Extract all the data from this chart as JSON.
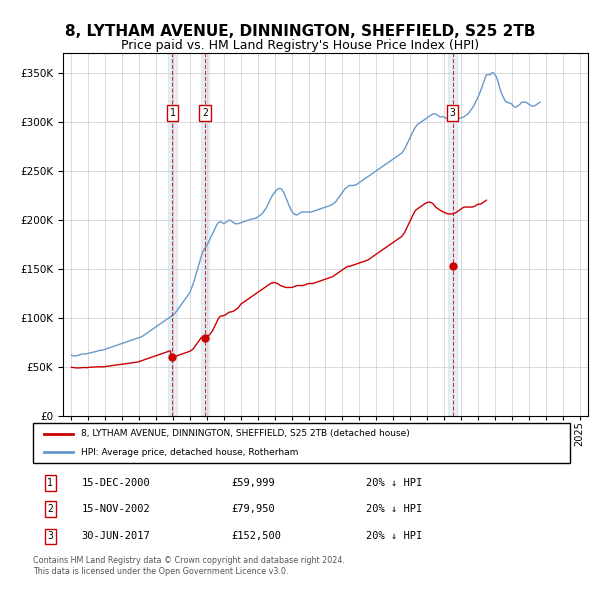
{
  "title": "8, LYTHAM AVENUE, DINNINGTON, SHEFFIELD, S25 2TB",
  "subtitle": "Price paid vs. HM Land Registry's House Price Index (HPI)",
  "title_fontsize": 11,
  "subtitle_fontsize": 9,
  "background_color": "#ffffff",
  "plot_bg_color": "#ffffff",
  "grid_color": "#cccccc",
  "ylim": [
    0,
    370000
  ],
  "yticks": [
    0,
    50000,
    100000,
    150000,
    200000,
    250000,
    300000,
    350000
  ],
  "xlim_start": 1994.5,
  "xlim_end": 2025.5,
  "xticks": [
    1995,
    1996,
    1997,
    1998,
    1999,
    2000,
    2001,
    2002,
    2003,
    2004,
    2005,
    2006,
    2007,
    2008,
    2009,
    2010,
    2011,
    2012,
    2013,
    2014,
    2015,
    2016,
    2017,
    2018,
    2019,
    2020,
    2021,
    2022,
    2023,
    2024,
    2025
  ],
  "hpi_color": "#6699cc",
  "price_color": "#cc0000",
  "sale_marker_color": "#cc0000",
  "legend_line1": "8, LYTHAM AVENUE, DINNINGTON, SHEFFIELD, S25 2TB (detached house)",
  "legend_line2": "HPI: Average price, detached house, Rotherham",
  "sales": [
    {
      "label": "1",
      "date": 2000.96,
      "price": 59999
    },
    {
      "label": "2",
      "date": 2002.88,
      "price": 79950
    },
    {
      "label": "3",
      "date": 2017.5,
      "price": 152500
    }
  ],
  "sale_table": [
    {
      "num": "1",
      "date": "15-DEC-2000",
      "price": "£59,999",
      "note": "20% ↓ HPI"
    },
    {
      "num": "2",
      "date": "15-NOV-2002",
      "price": "£79,950",
      "note": "20% ↓ HPI"
    },
    {
      "num": "3",
      "date": "30-JUN-2017",
      "price": "£152,500",
      "note": "20% ↓ HPI"
    }
  ],
  "footer": "Contains HM Land Registry data © Crown copyright and database right 2024.\nThis data is licensed under the Open Government Licence v3.0.",
  "hpi_data_y": [
    62000,
    61500,
    61000,
    61200,
    61500,
    62000,
    62500,
    63000,
    63200,
    63000,
    63200,
    63500,
    64000,
    64200,
    64500,
    65000,
    65200,
    65500,
    66000,
    66500,
    66800,
    67000,
    67200,
    67500,
    68000,
    68500,
    69000,
    69500,
    70000,
    70500,
    71000,
    71500,
    72000,
    72500,
    73000,
    73500,
    74000,
    74500,
    75000,
    75500,
    76000,
    76500,
    77000,
    77500,
    78000,
    78500,
    79000,
    79500,
    80000,
    80500,
    81000,
    82000,
    83000,
    84000,
    85000,
    86000,
    87000,
    88000,
    89000,
    90000,
    91000,
    92000,
    93000,
    94000,
    95000,
    96000,
    97000,
    98000,
    99000,
    100000,
    101000,
    102000,
    103000,
    104000,
    106000,
    108000,
    110000,
    112000,
    114000,
    116000,
    118000,
    120000,
    122000,
    124000,
    126000,
    130000,
    134000,
    138000,
    143000,
    148000,
    153000,
    158000,
    163000,
    167000,
    170000,
    172000,
    174000,
    177000,
    180000,
    183000,
    186000,
    189000,
    192000,
    195000,
    197000,
    198000,
    198000,
    197000,
    196000,
    197000,
    198000,
    199000,
    200000,
    199000,
    198000,
    197000,
    196000,
    196000,
    196000,
    196500,
    197000,
    197500,
    198000,
    198500,
    199000,
    199500,
    200000,
    200500,
    201000,
    201000,
    201500,
    202000,
    203000,
    204000,
    205000,
    206000,
    208000,
    210000,
    212000,
    215000,
    218000,
    221000,
    224000,
    226000,
    228000,
    230000,
    231000,
    232000,
    232000,
    231000,
    229000,
    226000,
    222000,
    219000,
    215000,
    212000,
    209000,
    207000,
    206000,
    205000,
    205000,
    206000,
    207000,
    208000,
    208000,
    208000,
    208000,
    208000,
    208000,
    208000,
    208000,
    208500,
    209000,
    209500,
    210000,
    210500,
    211000,
    211500,
    212000,
    212500,
    213000,
    213500,
    214000,
    214500,
    215000,
    216000,
    217000,
    218000,
    220000,
    222000,
    224000,
    226000,
    228000,
    230000,
    232000,
    233000,
    234000,
    235000,
    235000,
    235000,
    235000,
    235500,
    236000,
    237000,
    238000,
    239000,
    240000,
    241000,
    242000,
    243000,
    244000,
    245000,
    246000,
    247000,
    248000,
    249000,
    250000,
    251000,
    252000,
    253000,
    254000,
    255000,
    256000,
    257000,
    258000,
    259000,
    260000,
    261000,
    262000,
    263000,
    264000,
    265000,
    266000,
    267000,
    268000,
    270000,
    272000,
    275000,
    278000,
    281000,
    284000,
    287000,
    290000,
    293000,
    295000,
    297000,
    298000,
    299000,
    300000,
    301000,
    302000,
    303000,
    304000,
    305000,
    306000,
    307000,
    308000,
    308000,
    308000,
    307000,
    306000,
    305000,
    305000,
    305000,
    305000,
    304000,
    303000,
    303000,
    302000,
    302000,
    302000,
    302000,
    302000,
    302500,
    303000,
    303500,
    304000,
    304500,
    305000,
    306000,
    307000,
    308000,
    310000,
    312000,
    314000,
    316000,
    319000,
    322000,
    325000,
    328000,
    332000,
    336000,
    340000,
    344000,
    348000,
    348000,
    348000,
    348000,
    350000,
    350000,
    348000,
    346000,
    342000,
    337000,
    332000,
    328000,
    325000,
    322000,
    320000,
    320000,
    319000,
    319000,
    318000,
    316000,
    315000,
    315000,
    316000,
    317000,
    318000,
    320000,
    320000,
    320000,
    320000,
    319000,
    318000,
    317000,
    316000,
    316000,
    316000,
    317000,
    318000,
    319000,
    320000
  ],
  "price_data_y": [
    49600,
    49400,
    49200,
    49000,
    48900,
    49000,
    49100,
    49200,
    49300,
    49400,
    49300,
    49200,
    49500,
    49600,
    49700,
    49800,
    49900,
    50000,
    50100,
    50200,
    50100,
    50200,
    50000,
    50100,
    50400,
    50600,
    50800,
    51000,
    51200,
    51400,
    51600,
    51800,
    52000,
    52200,
    52400,
    52600,
    52800,
    53000,
    53200,
    53400,
    53600,
    53800,
    54000,
    54200,
    54400,
    54600,
    54800,
    55000,
    55500,
    56000,
    56500,
    57000,
    57500,
    58000,
    58500,
    59000,
    59500,
    60000,
    60500,
    61000,
    61500,
    62000,
    62500,
    63000,
    63500,
    64000,
    64500,
    65000,
    65500,
    66000,
    66500,
    59999,
    59999,
    60500,
    61000,
    61500,
    62000,
    62500,
    63000,
    63500,
    64000,
    64500,
    65000,
    65500,
    66000,
    67000,
    68000,
    70000,
    72000,
    74000,
    76000,
    78000,
    79950,
    79950,
    80000,
    80500,
    81000,
    82000,
    83000,
    85000,
    87000,
    90000,
    93000,
    96000,
    99000,
    101000,
    102000,
    102000,
    102500,
    103000,
    104000,
    105000,
    106000,
    106000,
    106500,
    107000,
    108000,
    109000,
    110000,
    112000,
    114000,
    115000,
    116000,
    117000,
    118000,
    119000,
    120000,
    121000,
    122000,
    123000,
    124000,
    125000,
    126000,
    127000,
    128000,
    129000,
    130000,
    131000,
    132000,
    133000,
    134000,
    135000,
    135500,
    136000,
    136000,
    135500,
    135000,
    134000,
    133000,
    132500,
    132000,
    131500,
    131000,
    131000,
    131000,
    131000,
    131000,
    131500,
    132000,
    132500,
    133000,
    133000,
    133000,
    133000,
    133000,
    133500,
    134000,
    134500,
    135000,
    135000,
    135000,
    135000,
    135500,
    136000,
    136500,
    137000,
    137500,
    138000,
    138500,
    139000,
    139500,
    140000,
    140500,
    141000,
    141500,
    142000,
    143000,
    144000,
    145000,
    146000,
    147000,
    148000,
    149000,
    150000,
    151000,
    152000,
    152500,
    152500,
    153000,
    153500,
    154000,
    154500,
    155000,
    155500,
    156000,
    156500,
    157000,
    157500,
    158000,
    158500,
    159000,
    160000,
    161000,
    162000,
    163000,
    164000,
    165000,
    166000,
    167000,
    168000,
    169000,
    170000,
    171000,
    172000,
    173000,
    174000,
    175000,
    176000,
    177000,
    178000,
    179000,
    180000,
    181000,
    182000,
    183000,
    185000,
    187000,
    190000,
    193000,
    196000,
    199000,
    202000,
    205000,
    208000,
    210000,
    211000,
    212000,
    213000,
    214000,
    215000,
    216000,
    217000,
    217500,
    218000,
    218000,
    217500,
    216500,
    215000,
    213000,
    212000,
    211000,
    210000,
    209000,
    208500,
    207500,
    207000,
    206500,
    206000,
    206000,
    206000,
    206000,
    206500,
    207000,
    208000,
    209000,
    210000,
    211000,
    212000,
    213000,
    213000,
    213000,
    213000,
    213000,
    213000,
    213000,
    213500,
    214000,
    215000,
    216000,
    216000,
    216000,
    217000,
    218000,
    219000,
    220000
  ]
}
